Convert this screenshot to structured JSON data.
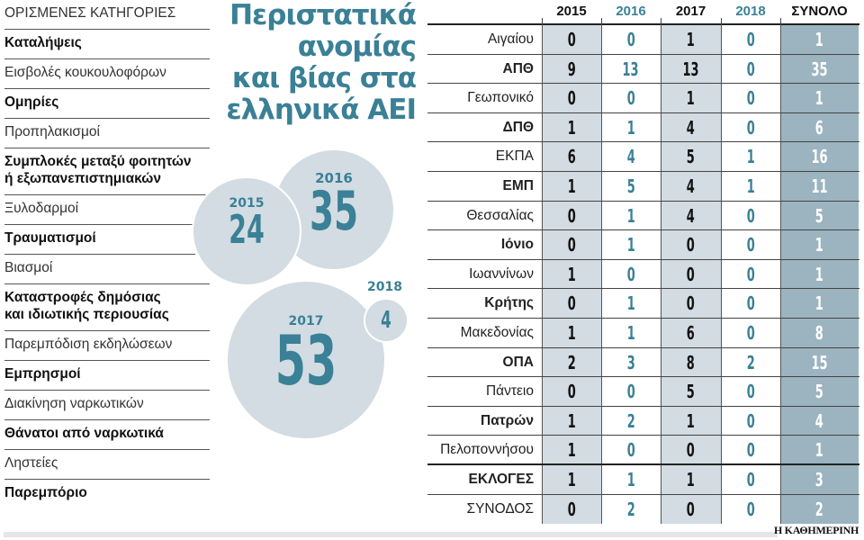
{
  "title": {
    "lines": [
      "Περιστατικά",
      "ανομίας",
      "και βίας στα",
      "ελληνικά ΑΕΙ"
    ]
  },
  "categories": {
    "header": "ΟΡΙΣΜΕΝΕΣ ΚΑΤΗΓΟΡΙΕΣ",
    "items": [
      {
        "label": "Καταλήψεις",
        "bold": true
      },
      {
        "label": "Εισβολές κουκουλοφόρων",
        "bold": false
      },
      {
        "label": "Ομηρίες",
        "bold": true
      },
      {
        "label": "Προπηλακισμοί",
        "bold": false
      },
      {
        "label": "Συμπλοκές μεταξύ φοιτητών",
        "label2": "ή εξωπανεπιστημιακών",
        "bold": true
      },
      {
        "label": "Ξυλοδαρμοί",
        "bold": false
      },
      {
        "label": "Τραυματισμοί",
        "bold": true
      },
      {
        "label": "Βιασμοί",
        "bold": false
      },
      {
        "label": "Καταστροφές δημόσιας",
        "label2": "και ιδιωτικής περιουσίας",
        "bold": true
      },
      {
        "label": "Παρεμπόδιση εκδηλώσεων",
        "bold": false
      },
      {
        "label": "Εμπρησμοί",
        "bold": true
      },
      {
        "label": "Διακίνηση ναρκωτικών",
        "bold": false
      },
      {
        "label": "Θάνατοι από ναρκωτικά",
        "bold": true
      },
      {
        "label": "Ληστείες",
        "bold": false
      },
      {
        "label": "Παρεμπόριο",
        "bold": true
      }
    ]
  },
  "bubbles": [
    {
      "year": "2015",
      "value": "24"
    },
    {
      "year": "2016",
      "value": "35"
    },
    {
      "year": "2017",
      "value": "53"
    },
    {
      "year": "2018",
      "value": "4"
    }
  ],
  "table": {
    "headers": [
      "2015",
      "2016",
      "2017",
      "2018",
      "ΣΥΝΟΛΟ"
    ],
    "rows": [
      {
        "name": "Αιγαίου",
        "bold": false,
        "v": [
          "0",
          "0",
          "1",
          "0",
          "1"
        ]
      },
      {
        "name": "ΑΠΘ",
        "bold": true,
        "v": [
          "9",
          "13",
          "13",
          "0",
          "35"
        ]
      },
      {
        "name": "Γεωπονικό",
        "bold": false,
        "v": [
          "0",
          "0",
          "1",
          "0",
          "1"
        ]
      },
      {
        "name": "ΔΠΘ",
        "bold": true,
        "v": [
          "1",
          "1",
          "4",
          "0",
          "6"
        ]
      },
      {
        "name": "ΕΚΠΑ",
        "bold": false,
        "v": [
          "6",
          "4",
          "5",
          "1",
          "16"
        ]
      },
      {
        "name": "ΕΜΠ",
        "bold": true,
        "v": [
          "1",
          "5",
          "4",
          "1",
          "11"
        ]
      },
      {
        "name": "Θεσσαλίας",
        "bold": false,
        "v": [
          "0",
          "1",
          "4",
          "0",
          "5"
        ]
      },
      {
        "name": "Ιόνιο",
        "bold": true,
        "v": [
          "0",
          "1",
          "0",
          "0",
          "1"
        ]
      },
      {
        "name": "Ιωαννίνων",
        "bold": false,
        "v": [
          "1",
          "0",
          "0",
          "0",
          "1"
        ]
      },
      {
        "name": "Κρήτης",
        "bold": true,
        "v": [
          "0",
          "1",
          "0",
          "0",
          "1"
        ]
      },
      {
        "name": "Μακεδονίας",
        "bold": false,
        "v": [
          "1",
          "1",
          "6",
          "0",
          "8"
        ]
      },
      {
        "name": "ΟΠΑ",
        "bold": true,
        "v": [
          "2",
          "3",
          "8",
          "2",
          "15"
        ]
      },
      {
        "name": "Πάντειο",
        "bold": false,
        "v": [
          "0",
          "0",
          "5",
          "0",
          "5"
        ]
      },
      {
        "name": "Πατρών",
        "bold": true,
        "v": [
          "1",
          "2",
          "1",
          "0",
          "4"
        ]
      },
      {
        "name": "Πελοποννήσου",
        "bold": false,
        "v": [
          "1",
          "0",
          "0",
          "0",
          "1"
        ]
      },
      {
        "name": "ΕΚΛΟΓΕΣ",
        "bold": true,
        "v": [
          "1",
          "1",
          "1",
          "0",
          "3"
        ]
      },
      {
        "name": "ΣΥΝΟΔΟΣ",
        "bold": false,
        "v": [
          "0",
          "2",
          "0",
          "0",
          "2"
        ]
      }
    ]
  },
  "credit": "Η ΚΑΘΗΜΕΡΙΝΗ",
  "colors": {
    "accent": "#3a8096",
    "light_fill": "#d2dce2",
    "total_fill": "#9bb4c0"
  },
  "chart_data": {
    "type": "table",
    "title": "Περιστατικά ανομίας και βίας στα ελληνικά ΑΕΙ",
    "columns": [
      "2015",
      "2016",
      "2017",
      "2018",
      "ΣΥΝΟΛΟ"
    ],
    "categories": [
      "Αιγαίου",
      "ΑΠΘ",
      "Γεωπονικό",
      "ΔΠΘ",
      "ΕΚΠΑ",
      "ΕΜΠ",
      "Θεσσαλίας",
      "Ιόνιο",
      "Ιωαννίνων",
      "Κρήτης",
      "Μακεδονίας",
      "ΟΠΑ",
      "Πάντειο",
      "Πατρών",
      "Πελοποννήσου",
      "ΕΚΛΟΓΕΣ",
      "ΣΥΝΟΔΟΣ"
    ],
    "series": [
      {
        "name": "2015",
        "values": [
          0,
          9,
          0,
          1,
          6,
          1,
          0,
          0,
          1,
          0,
          1,
          2,
          0,
          1,
          1,
          1,
          0
        ]
      },
      {
        "name": "2016",
        "values": [
          0,
          13,
          0,
          1,
          4,
          5,
          1,
          1,
          0,
          1,
          1,
          3,
          0,
          2,
          0,
          1,
          2
        ]
      },
      {
        "name": "2017",
        "values": [
          1,
          13,
          1,
          4,
          5,
          4,
          4,
          0,
          0,
          0,
          6,
          8,
          5,
          1,
          0,
          1,
          0
        ]
      },
      {
        "name": "2018",
        "values": [
          0,
          0,
          0,
          0,
          1,
          1,
          0,
          0,
          0,
          0,
          0,
          2,
          0,
          0,
          0,
          0,
          0
        ]
      },
      {
        "name": "ΣΥΝΟΛΟ",
        "values": [
          1,
          35,
          1,
          6,
          16,
          11,
          5,
          1,
          1,
          1,
          8,
          15,
          5,
          4,
          1,
          3,
          2
        ]
      }
    ],
    "yearly_totals": {
      "2015": 24,
      "2016": 35,
      "2017": 53,
      "2018": 4
    }
  }
}
